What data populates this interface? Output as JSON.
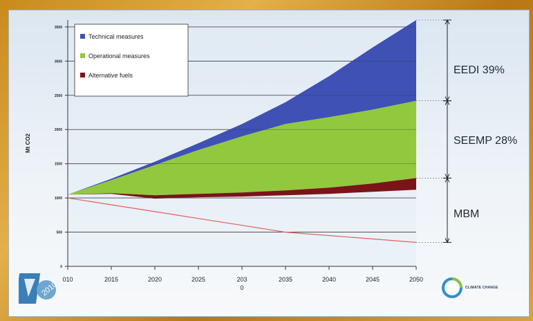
{
  "chart_data": {
    "type": "area",
    "title": "",
    "xlabel": "",
    "ylabel": "Mt CO2",
    "x": [
      2010,
      2015,
      2020,
      2025,
      2030,
      2035,
      2040,
      2045,
      2050
    ],
    "xtick_labels": [
      "010",
      "2015",
      "2020",
      "2025",
      "203\n0",
      "2035",
      "2040",
      "2045",
      "2050"
    ],
    "ylim": [
      0,
      3600
    ],
    "yticks": [
      0,
      500,
      1000,
      1500,
      2000,
      2500,
      3000,
      3500
    ],
    "grid": true,
    "legend_position": "top-left",
    "baseline_line": [
      1000,
      900,
      800,
      700,
      600,
      500,
      450,
      400,
      350
    ],
    "series": [
      {
        "name": "Technical measures",
        "color": "#3f51b5",
        "lower": [
          1050,
          1260,
          1480,
          1700,
          1900,
          2080,
          2180,
          2290,
          2420
        ],
        "upper": [
          1050,
          1280,
          1530,
          1800,
          2080,
          2400,
          2780,
          3200,
          3600
        ]
      },
      {
        "name": "Operational measures",
        "color": "#92c83e",
        "lower": [
          1050,
          1070,
          1040,
          1060,
          1080,
          1110,
          1150,
          1210,
          1290
        ],
        "upper": [
          1050,
          1260,
          1480,
          1700,
          1900,
          2080,
          2180,
          2290,
          2420
        ]
      },
      {
        "name": "Alternative fuels",
        "color": "#7a1418",
        "lower": [
          1050,
          1060,
          990,
          1010,
          1020,
          1040,
          1060,
          1090,
          1120
        ],
        "upper": [
          1050,
          1070,
          1040,
          1060,
          1080,
          1110,
          1150,
          1210,
          1290
        ]
      }
    ],
    "bracket_labels": [
      "EEDI 39%",
      "SEEMP 28%",
      "MBM"
    ]
  },
  "logos": {
    "left_text": "2010",
    "right_text": "CLIMATE CHANGE"
  }
}
